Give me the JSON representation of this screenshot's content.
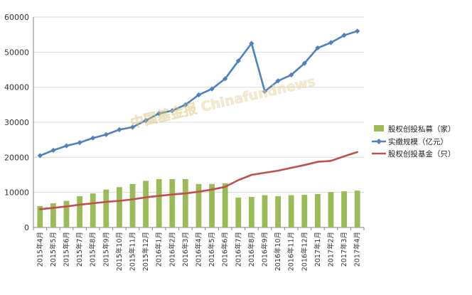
{
  "chart_data": {
    "type": "bar",
    "categories": [
      "2015年4月",
      "2015年5月",
      "2015年6月",
      "2015年7月",
      "2015年8月",
      "2015年9月",
      "2015年10月",
      "2015年11月",
      "2015年12月",
      "2016年1月",
      "2016年2月",
      "2016年3月",
      "2016年4月",
      "2016年5月",
      "2016年6月",
      "2016年7月",
      "2016年8月",
      "2016年9月",
      "2016年10月",
      "2016年11月",
      "2016年12月",
      "2017年1月",
      "2017年2月",
      "2017年3月",
      "2017年4月"
    ],
    "series": [
      {
        "name": "股权创投私募（家）",
        "kind": "bar",
        "color": "#9bbb59",
        "values": [
          6100,
          6900,
          7600,
          8900,
          9700,
          10800,
          11500,
          12400,
          13300,
          13800,
          13800,
          13800,
          12400,
          12400,
          12600,
          8500,
          8700,
          9200,
          8900,
          9200,
          9300,
          9500,
          10100,
          10300,
          10500
        ]
      },
      {
        "name": "实缴规模（亿元）",
        "kind": "line-marker",
        "color": "#4f81bd",
        "values": [
          20500,
          22000,
          23300,
          24200,
          25500,
          26500,
          27900,
          28600,
          30500,
          32500,
          33300,
          35000,
          37800,
          39500,
          42400,
          47500,
          52500,
          38800,
          41800,
          43500,
          46800,
          51200,
          52700,
          54800,
          56000
        ]
      },
      {
        "name": "股权创投基金（只）",
        "kind": "line",
        "color": "#c0504d",
        "values": [
          5200,
          5600,
          6000,
          6500,
          6900,
          7300,
          7600,
          8000,
          8600,
          9000,
          9400,
          9700,
          10200,
          10800,
          11600,
          13500,
          15000,
          15600,
          16200,
          17000,
          17800,
          18700,
          19000,
          20300,
          21500
        ]
      }
    ],
    "ylim": [
      0,
      60000
    ],
    "yticks": [
      "0",
      "10000",
      "20000",
      "30000",
      "40000",
      "50000",
      "60000"
    ],
    "grid": true,
    "legend_position": "right",
    "watermark": "中国基金报 Chinafundnews"
  }
}
